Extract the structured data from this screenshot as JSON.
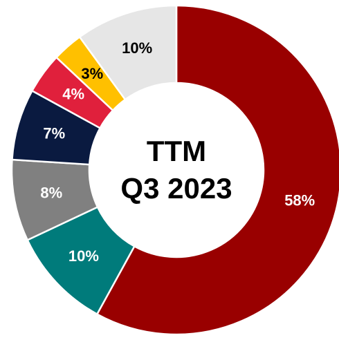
{
  "chart_data": {
    "type": "donut",
    "title_lines": [
      "TTM",
      "Q3 2023"
    ],
    "values": [
      58,
      10,
      8,
      7,
      4,
      3,
      10
    ],
    "value_labels": [
      "58%",
      "10%",
      "8%",
      "7%",
      "4%",
      "3%",
      "10%"
    ],
    "colors": [
      "#990000",
      "#007b7b",
      "#808080",
      "#0a1a40",
      "#e0203c",
      "#ffc000",
      "#e6e6e6"
    ],
    "label_colors": [
      "#ffffff",
      "#ffffff",
      "#ffffff",
      "#ffffff",
      "#ffffff",
      "#000000",
      "#000000"
    ],
    "start_angle": 0,
    "direction": "clockwise"
  }
}
